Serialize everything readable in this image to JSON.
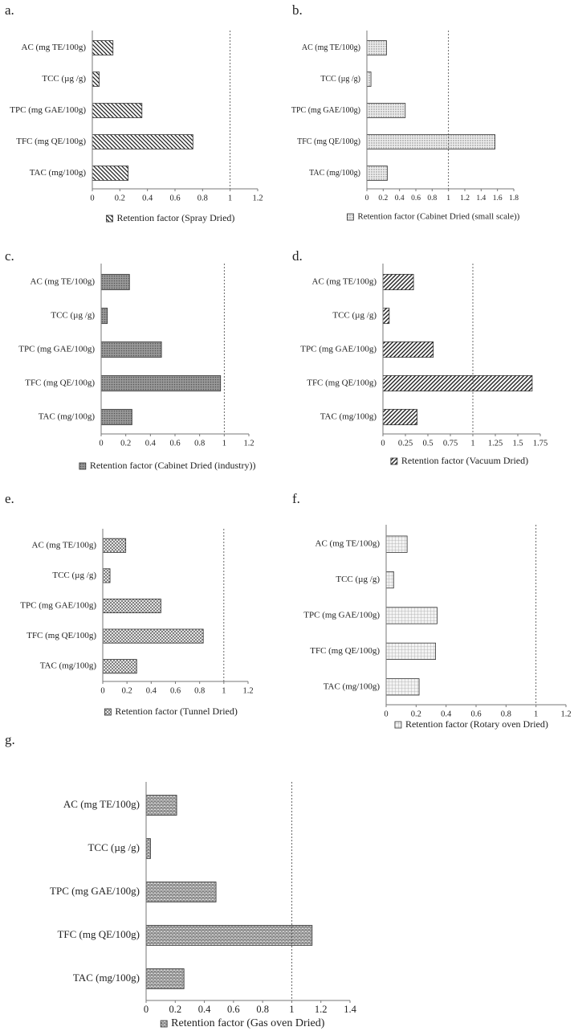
{
  "chart_data": [
    {
      "type": "bar",
      "panel_label": "a.",
      "categories": [
        "AC (mg TE/100g)",
        "TCC (µg /g)",
        "TPC (mg GAE/100g)",
        "TFC (mg QE/100g)",
        "TAC (mg/100g)"
      ],
      "series": [
        {
          "name": "Retention factor (Spray Dried)",
          "pattern": "diag-down",
          "values": [
            0.15,
            0.05,
            0.36,
            0.73,
            0.26
          ]
        }
      ],
      "xlim": [
        0,
        1.2
      ],
      "xticks": [
        0,
        0.2,
        0.4,
        0.6,
        0.8,
        1,
        1.2
      ],
      "reference_line": 1
    },
    {
      "type": "bar",
      "panel_label": "b.",
      "categories": [
        "AC (mg TE/100g)",
        "TCC (µg /g)",
        "TPC (mg GAE/100g)",
        "TFC (mg QE/100g)",
        "TAC (mg/100g)"
      ],
      "series": [
        {
          "name": "Retention factor (Cabinet Dried (small scale))",
          "pattern": "dots",
          "values": [
            0.24,
            0.05,
            0.47,
            1.57,
            0.25
          ]
        }
      ],
      "xlim": [
        0,
        1.8
      ],
      "xticks": [
        0,
        0.2,
        0.4,
        0.6,
        0.8,
        1,
        1.2,
        1.4,
        1.6,
        1.8
      ],
      "reference_line": 1
    },
    {
      "type": "bar",
      "panel_label": "c.",
      "categories": [
        "AC (mg TE/100g)",
        "TCC (µg /g)",
        "TPC (mg GAE/100g)",
        "TFC (mg QE/100g)",
        "TAC (mg/100g)"
      ],
      "series": [
        {
          "name": "Retention factor (Cabinet Dried (industry))",
          "pattern": "dense-dots",
          "values": [
            0.23,
            0.05,
            0.49,
            0.97,
            0.25
          ]
        }
      ],
      "xlim": [
        0,
        1.2
      ],
      "xticks": [
        0,
        0.2,
        0.4,
        0.6,
        0.8,
        1,
        1.2
      ],
      "reference_line": 1
    },
    {
      "type": "bar",
      "panel_label": "d.",
      "categories": [
        "AC (mg TE/100g)",
        "TCC (µg /g)",
        "TPC (mg GAE/100g)",
        "TFC (mg QE/100g)",
        "TAC (mg/100g)"
      ],
      "series": [
        {
          "name": "Retention factor (Vacuum Dried)",
          "pattern": "diag-up",
          "values": [
            0.34,
            0.07,
            0.56,
            1.66,
            0.38
          ]
        }
      ],
      "xlim": [
        0,
        1.75
      ],
      "xticks": [
        0,
        0.25,
        0.5,
        0.75,
        1,
        1.25,
        1.5,
        1.75
      ],
      "reference_line": 1
    },
    {
      "type": "bar",
      "panel_label": "e.",
      "categories": [
        "AC (mg TE/100g)",
        "TCC (µg /g)",
        "TPC (mg GAE/100g)",
        "TFC (mg QE/100g)",
        "TAC (mg/100g)"
      ],
      "series": [
        {
          "name": "Retention factor (Tunnel Dried)",
          "pattern": "crosshatch",
          "values": [
            0.19,
            0.06,
            0.48,
            0.83,
            0.28
          ]
        }
      ],
      "xlim": [
        0,
        1.2
      ],
      "xticks": [
        0,
        0.2,
        0.4,
        0.6,
        0.8,
        1,
        1.2
      ],
      "reference_line": 1
    },
    {
      "type": "bar",
      "panel_label": "f.",
      "categories": [
        "AC (mg TE/100g)",
        "TCC (µg /g)",
        "TPC (mg GAE/100g)",
        "TFC (mg QE/100g)",
        "TAC (mg/100g)"
      ],
      "series": [
        {
          "name": "Retention factor (Rotary oven Dried)",
          "pattern": "grid",
          "values": [
            0.14,
            0.05,
            0.34,
            0.33,
            0.22
          ]
        }
      ],
      "xlim": [
        0,
        1.2
      ],
      "xticks": [
        0,
        0.2,
        0.4,
        0.6,
        0.8,
        1,
        1.2
      ],
      "reference_line": 1
    },
    {
      "type": "bar",
      "panel_label": "g.",
      "categories": [
        "AC (mg TE/100g)",
        "TCC (µg /g)",
        "TPC (mg GAE/100g)",
        "TFC (mg QE/100g)",
        "TAC (mg/100g)"
      ],
      "series": [
        {
          "name": "Retention factor (Gas oven Dried)",
          "pattern": "brick",
          "values": [
            0.21,
            0.03,
            0.48,
            1.14,
            0.26
          ]
        }
      ],
      "xlim": [
        0,
        1.4
      ],
      "xticks": [
        0,
        0.2,
        0.4,
        0.6,
        0.8,
        1,
        1.2,
        1.4
      ],
      "reference_line": 1
    }
  ]
}
